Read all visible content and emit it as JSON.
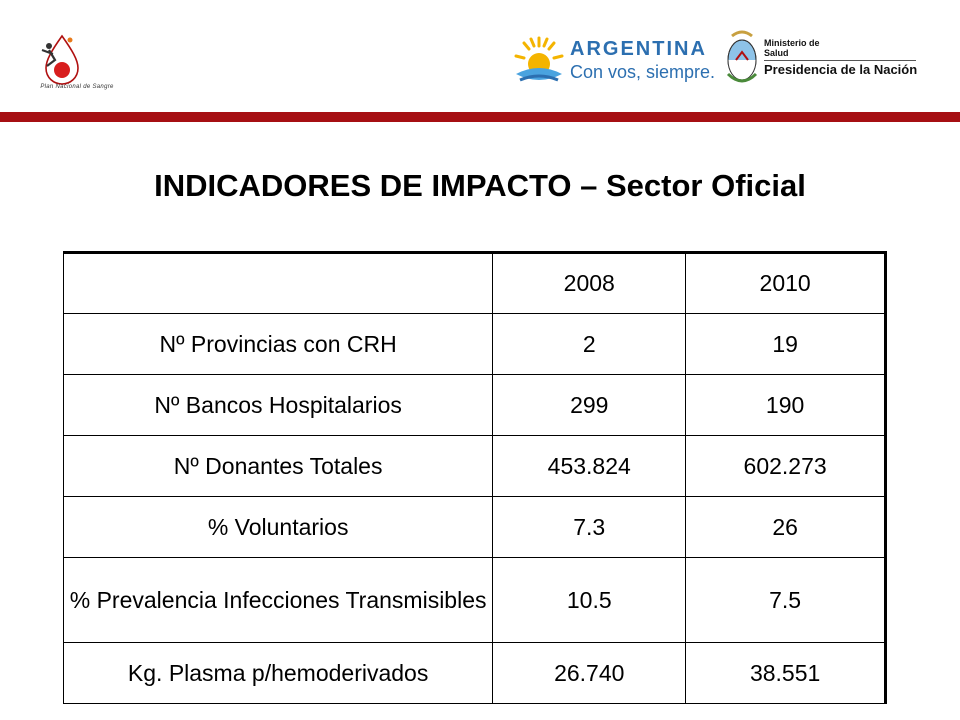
{
  "header": {
    "plan_caption": "Plan Nacional de Sangre",
    "argentina_word": "ARGENTINA",
    "argentina_slogan": "Con vos, siempre.",
    "ministry_line1": "Ministerio de",
    "ministry_line2": "Salud",
    "ministry_line3": "Presidencia de la Nación"
  },
  "colors": {
    "accent_red": "#a60f13",
    "brand_blue": "#2c6fb0"
  },
  "title": "INDICADORES DE IMPACTO – Sector Oficial",
  "table": {
    "headers": [
      "",
      "2008",
      "2010"
    ],
    "rows": [
      [
        "Nº Provincias con CRH",
        "2",
        "19"
      ],
      [
        "Nº Bancos Hospitalarios",
        "299",
        "190"
      ],
      [
        "Nº Donantes Totales",
        "453.824",
        "602.273"
      ],
      [
        "% Voluntarios",
        "7.3",
        "26"
      ],
      [
        "% Prevalencia Infecciones Transmisibles",
        "10.5",
        "7.5"
      ],
      [
        "Kg. Plasma p/hemoderivados",
        "26.740",
        "38.551"
      ]
    ]
  }
}
